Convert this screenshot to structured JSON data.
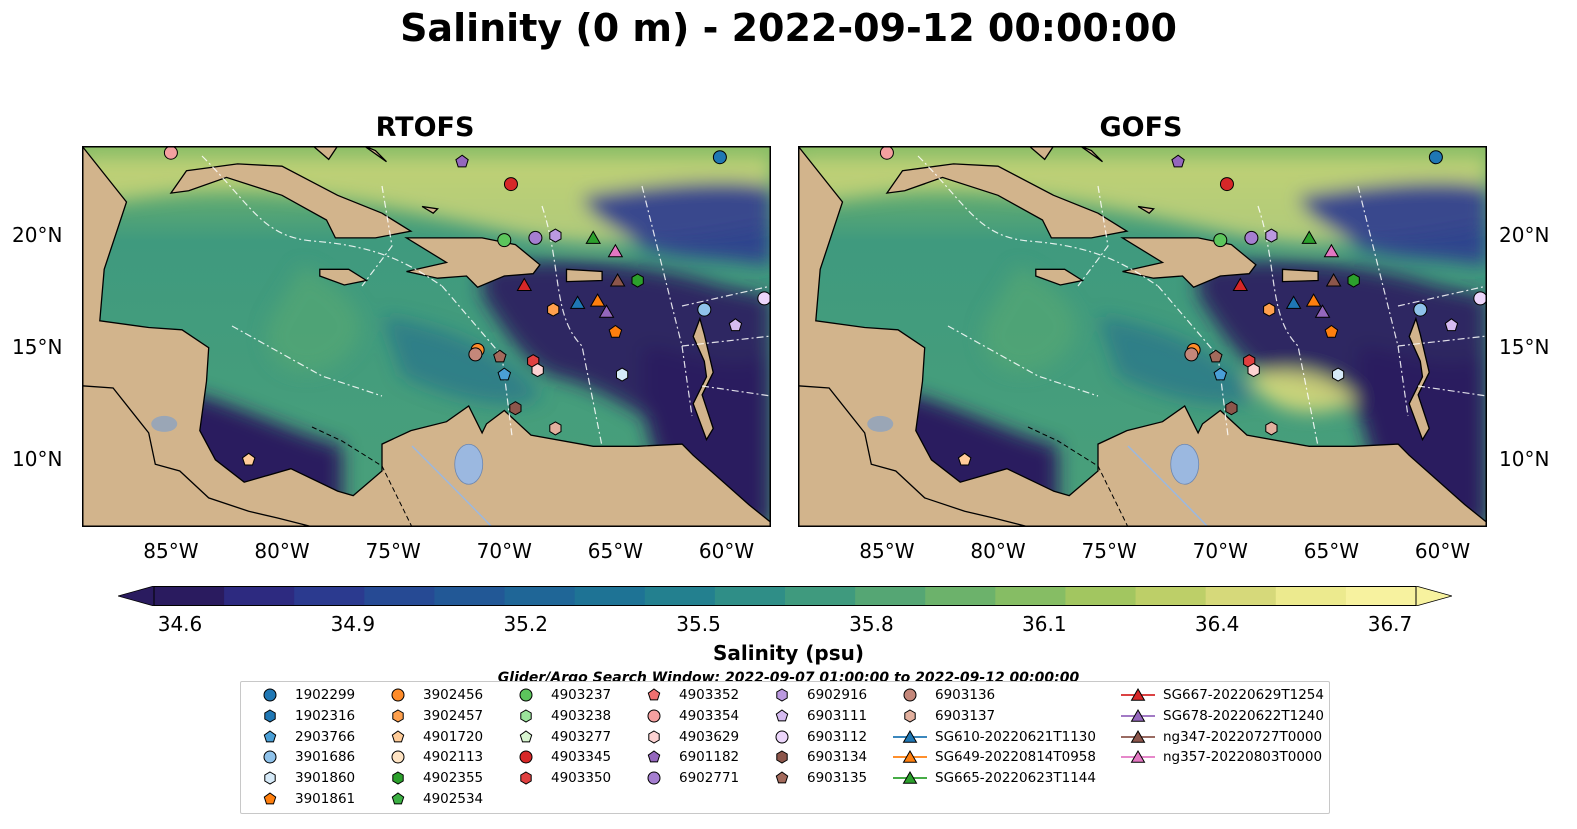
{
  "title": "Salinity (0 m) - 2022-09-12 00:00:00",
  "panels": [
    {
      "id": "rtofs",
      "title": "RTOFS"
    },
    {
      "id": "gofs",
      "title": "GOFS"
    }
  ],
  "axes": {
    "x_ticks": [
      "85°W",
      "80°W",
      "75°W",
      "70°W",
      "65°W",
      "60°W"
    ],
    "y_ticks": [
      "20°N",
      "15°N",
      "10°N"
    ]
  },
  "colorbar": {
    "label": "Salinity (psu)",
    "ticks": [
      "34.6",
      "34.9",
      "35.2",
      "35.5",
      "35.8",
      "36.1",
      "36.4",
      "36.7"
    ],
    "colors": [
      "#2a1b5f",
      "#2d2a80",
      "#2b3a8f",
      "#264a94",
      "#225896",
      "#1f6697",
      "#1e7395",
      "#23808f",
      "#2f8e87",
      "#3f9a7e",
      "#55a674",
      "#6cb26b",
      "#86bd64",
      "#a2c660",
      "#bdcf68",
      "#d6d97a",
      "#ecea8e",
      "#f7f29f"
    ],
    "extend": "both"
  },
  "search_window": "Glider/Argo Search Window: 2022-09-07 01:00:00 to 2022-09-12 00:00:00",
  "map_colors": {
    "land": "#d2b48c",
    "lake": "#9bb8e0",
    "ocean_deep": "#2a1b5f",
    "ocean_mid": "#3f9a7e",
    "ocean_salty": "#d6d97a"
  },
  "chart_data": [
    {
      "type": "heatmap",
      "title": "RTOFS",
      "variable": "Salinity (psu)",
      "depth": "0 m",
      "time": "2022-09-12 00:00:00",
      "xlim": [
        -89,
        -58
      ],
      "ylim": [
        7,
        24
      ],
      "x_ticks": [
        -85,
        -80,
        -75,
        -70,
        -65,
        -60
      ],
      "y_ticks": [
        20,
        15,
        10
      ],
      "clim": [
        34.6,
        36.7
      ]
    },
    {
      "type": "heatmap",
      "title": "GOFS",
      "variable": "Salinity (psu)",
      "depth": "0 m",
      "time": "2022-09-12 00:00:00",
      "xlim": [
        -89,
        -58
      ],
      "ylim": [
        7,
        24
      ],
      "x_ticks": [
        -85,
        -80,
        -75,
        -70,
        -65,
        -60
      ],
      "y_ticks": [
        20,
        15,
        10
      ],
      "clim": [
        34.6,
        36.7
      ]
    }
  ],
  "platforms": [
    {
      "name": "1902299",
      "marker": "circle",
      "color": "#1f77b4",
      "lon": -60.3,
      "lat": 23.5
    },
    {
      "name": "1902316",
      "marker": "hexagon",
      "color": "#1f77b4",
      "lon": null,
      "lat": null
    },
    {
      "name": "2903766",
      "marker": "pentagon",
      "color": "#4a9fd6",
      "lon": -70.0,
      "lat": 13.8
    },
    {
      "name": "3901686",
      "marker": "circle",
      "color": "#8fc2ea",
      "lon": -61.0,
      "lat": 16.7
    },
    {
      "name": "3901860",
      "marker": "hexagon",
      "color": "#d6eaf8",
      "lon": -64.7,
      "lat": 13.8
    },
    {
      "name": "3901861",
      "marker": "pentagon",
      "color": "#ff7f0e",
      "lon": -65.0,
      "lat": 15.7
    },
    {
      "name": "3902456",
      "marker": "circle",
      "color": "#ff8c29",
      "lon": -71.2,
      "lat": 14.9
    },
    {
      "name": "3902457",
      "marker": "hexagon",
      "color": "#ffa04d",
      "lon": -67.8,
      "lat": 16.7
    },
    {
      "name": "4901720",
      "marker": "pentagon",
      "color": "#ffcc99",
      "lon": -81.5,
      "lat": 10.0
    },
    {
      "name": "4902113",
      "marker": "circle",
      "color": "#ffe4c4",
      "lon": null,
      "lat": null
    },
    {
      "name": "4902355",
      "marker": "hexagon",
      "color": "#2ca02c",
      "lon": -64.0,
      "lat": 18.0
    },
    {
      "name": "4902534",
      "marker": "pentagon",
      "color": "#3cb043",
      "lon": null,
      "lat": null
    },
    {
      "name": "4903237",
      "marker": "circle",
      "color": "#5cc55c",
      "lon": -70.0,
      "lat": 19.8
    },
    {
      "name": "4903238",
      "marker": "hexagon",
      "color": "#9be39b",
      "lon": null,
      "lat": null
    },
    {
      "name": "4903277",
      "marker": "pentagon",
      "color": "#d8f5d0",
      "lon": null,
      "lat": null
    },
    {
      "name": "4903345",
      "marker": "circle",
      "color": "#d62728",
      "lon": -69.7,
      "lat": 22.3
    },
    {
      "name": "4903350",
      "marker": "hexagon",
      "color": "#e04040",
      "lon": -68.7,
      "lat": 14.4
    },
    {
      "name": "4903352",
      "marker": "pentagon",
      "color": "#f07070",
      "lon": null,
      "lat": null
    },
    {
      "name": "4903354",
      "marker": "circle",
      "color": "#f4a0a0",
      "lon": -85.0,
      "lat": 23.7
    },
    {
      "name": "4903629",
      "marker": "hexagon",
      "color": "#fcd2d2",
      "lon": -68.5,
      "lat": 14.0
    },
    {
      "name": "6901182",
      "marker": "pentagon",
      "color": "#9467bd",
      "lon": -71.9,
      "lat": 23.3
    },
    {
      "name": "6902771",
      "marker": "circle",
      "color": "#a57ed0",
      "lon": -68.6,
      "lat": 19.9
    },
    {
      "name": "6902916",
      "marker": "hexagon",
      "color": "#bb99e0",
      "lon": -67.7,
      "lat": 20.0
    },
    {
      "name": "6903111",
      "marker": "pentagon",
      "color": "#d5bbf0",
      "lon": -59.6,
      "lat": 16.0
    },
    {
      "name": "6903112",
      "marker": "circle",
      "color": "#ecd6fb",
      "lon": -58.3,
      "lat": 17.2
    },
    {
      "name": "6903134",
      "marker": "hexagon",
      "color": "#8c564b",
      "lon": -69.5,
      "lat": 12.3
    },
    {
      "name": "6903135",
      "marker": "pentagon",
      "color": "#a36a5c",
      "lon": -70.2,
      "lat": 14.6
    },
    {
      "name": "6903136",
      "marker": "circle",
      "color": "#c4877a",
      "lon": -71.3,
      "lat": 14.7
    },
    {
      "name": "6903137",
      "marker": "hexagon",
      "color": "#e2b09e",
      "lon": -67.7,
      "lat": 11.4
    },
    {
      "name": "SG610-20220621T1130",
      "marker": "triangle",
      "color": "#1f77b4",
      "lon": -66.7,
      "lat": 17.0
    },
    {
      "name": "SG649-20220814T0958",
      "marker": "triangle",
      "color": "#ff7f0e",
      "lon": -65.8,
      "lat": 17.1
    },
    {
      "name": "SG665-20220623T1144",
      "marker": "triangle",
      "color": "#2ca02c",
      "lon": -66.0,
      "lat": 19.9
    },
    {
      "name": "SG667-20220629T1254",
      "marker": "triangle",
      "color": "#d62728",
      "lon": -69.1,
      "lat": 17.8
    },
    {
      "name": "SG678-20220622T1240",
      "marker": "triangle",
      "color": "#9467bd",
      "lon": -65.4,
      "lat": 16.6
    },
    {
      "name": "ng347-20220727T0000",
      "marker": "triangle",
      "color": "#8c564b",
      "lon": -64.9,
      "lat": 18.0
    },
    {
      "name": "ng357-20220803T0000",
      "marker": "triangle",
      "color": "#e377c2",
      "lon": -65.0,
      "lat": 19.3
    }
  ]
}
